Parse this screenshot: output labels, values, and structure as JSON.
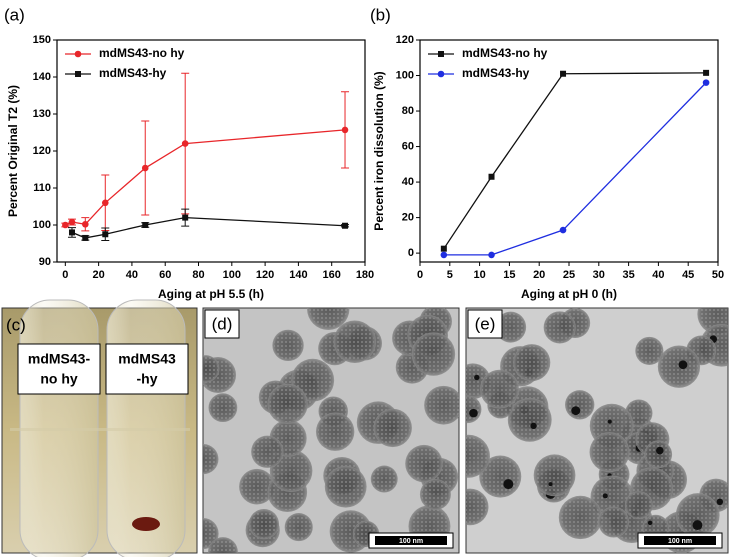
{
  "chart_data": [
    {
      "type": "line",
      "title": "(a)",
      "x_label": "Aging at pH 5.5  (h)",
      "y_label": "Percent Original T2 (%)",
      "xlim": [
        -5,
        180
      ],
      "xticks": [
        0,
        20,
        40,
        60,
        80,
        100,
        120,
        140,
        160,
        180
      ],
      "ylim": [
        90,
        150
      ],
      "yticks": [
        90,
        100,
        110,
        120,
        130,
        140,
        150
      ],
      "legend": "upper left",
      "series": [
        {
          "name": "mdMS43-no hy",
          "color": "#e8262a",
          "marker": "circle",
          "x": [
            0,
            4,
            12,
            24,
            48,
            72,
            168
          ],
          "values": [
            100,
            100.8,
            100.2,
            106,
            115.4,
            122,
            125.7
          ],
          "errors": [
            0.5,
            0.8,
            1.8,
            7.5,
            12.7,
            19,
            10.3
          ]
        },
        {
          "name": "mdMS43-hy",
          "color": "#111111",
          "marker": "square",
          "x": [
            4,
            12,
            24,
            48,
            72,
            168
          ],
          "values": [
            98,
            96.5,
            97.5,
            100,
            102,
            99.8
          ],
          "errors": [
            1.3,
            0.6,
            1.7,
            0.6,
            2.3,
            0.3
          ]
        }
      ]
    },
    {
      "type": "line",
      "title": "(b)",
      "x_label": "Aging at pH 0 (h)",
      "y_label": "Percent iron dissolution (%)",
      "xlim": [
        0,
        50
      ],
      "xticks": [
        0,
        5,
        10,
        15,
        20,
        25,
        30,
        35,
        40,
        45,
        50
      ],
      "ylim": [
        -5,
        120
      ],
      "yticks": [
        0,
        20,
        40,
        60,
        80,
        100,
        120
      ],
      "legend": "upper left",
      "series": [
        {
          "name": "mdMS43-no hy",
          "color": "#111111",
          "marker": "square",
          "x": [
            4,
            12,
            24,
            48
          ],
          "values": [
            2.5,
            43,
            101,
            101.5
          ]
        },
        {
          "name": "mdMS43-hy",
          "color": "#1f2ee0",
          "marker": "circle",
          "x": [
            4,
            12,
            24,
            48
          ],
          "values": [
            -1,
            -1,
            13,
            96
          ]
        }
      ]
    }
  ],
  "panels": [
    {
      "label": "(c)",
      "tubes": [
        {
          "lines": [
            "mdMS43-",
            "no hy"
          ]
        },
        {
          "lines": [
            "mdMS43",
            "-hy"
          ]
        }
      ]
    },
    {
      "label": "(d)",
      "scale_bar": "100 nm"
    },
    {
      "label": "(e)",
      "scale_bar": "100 nm"
    }
  ]
}
